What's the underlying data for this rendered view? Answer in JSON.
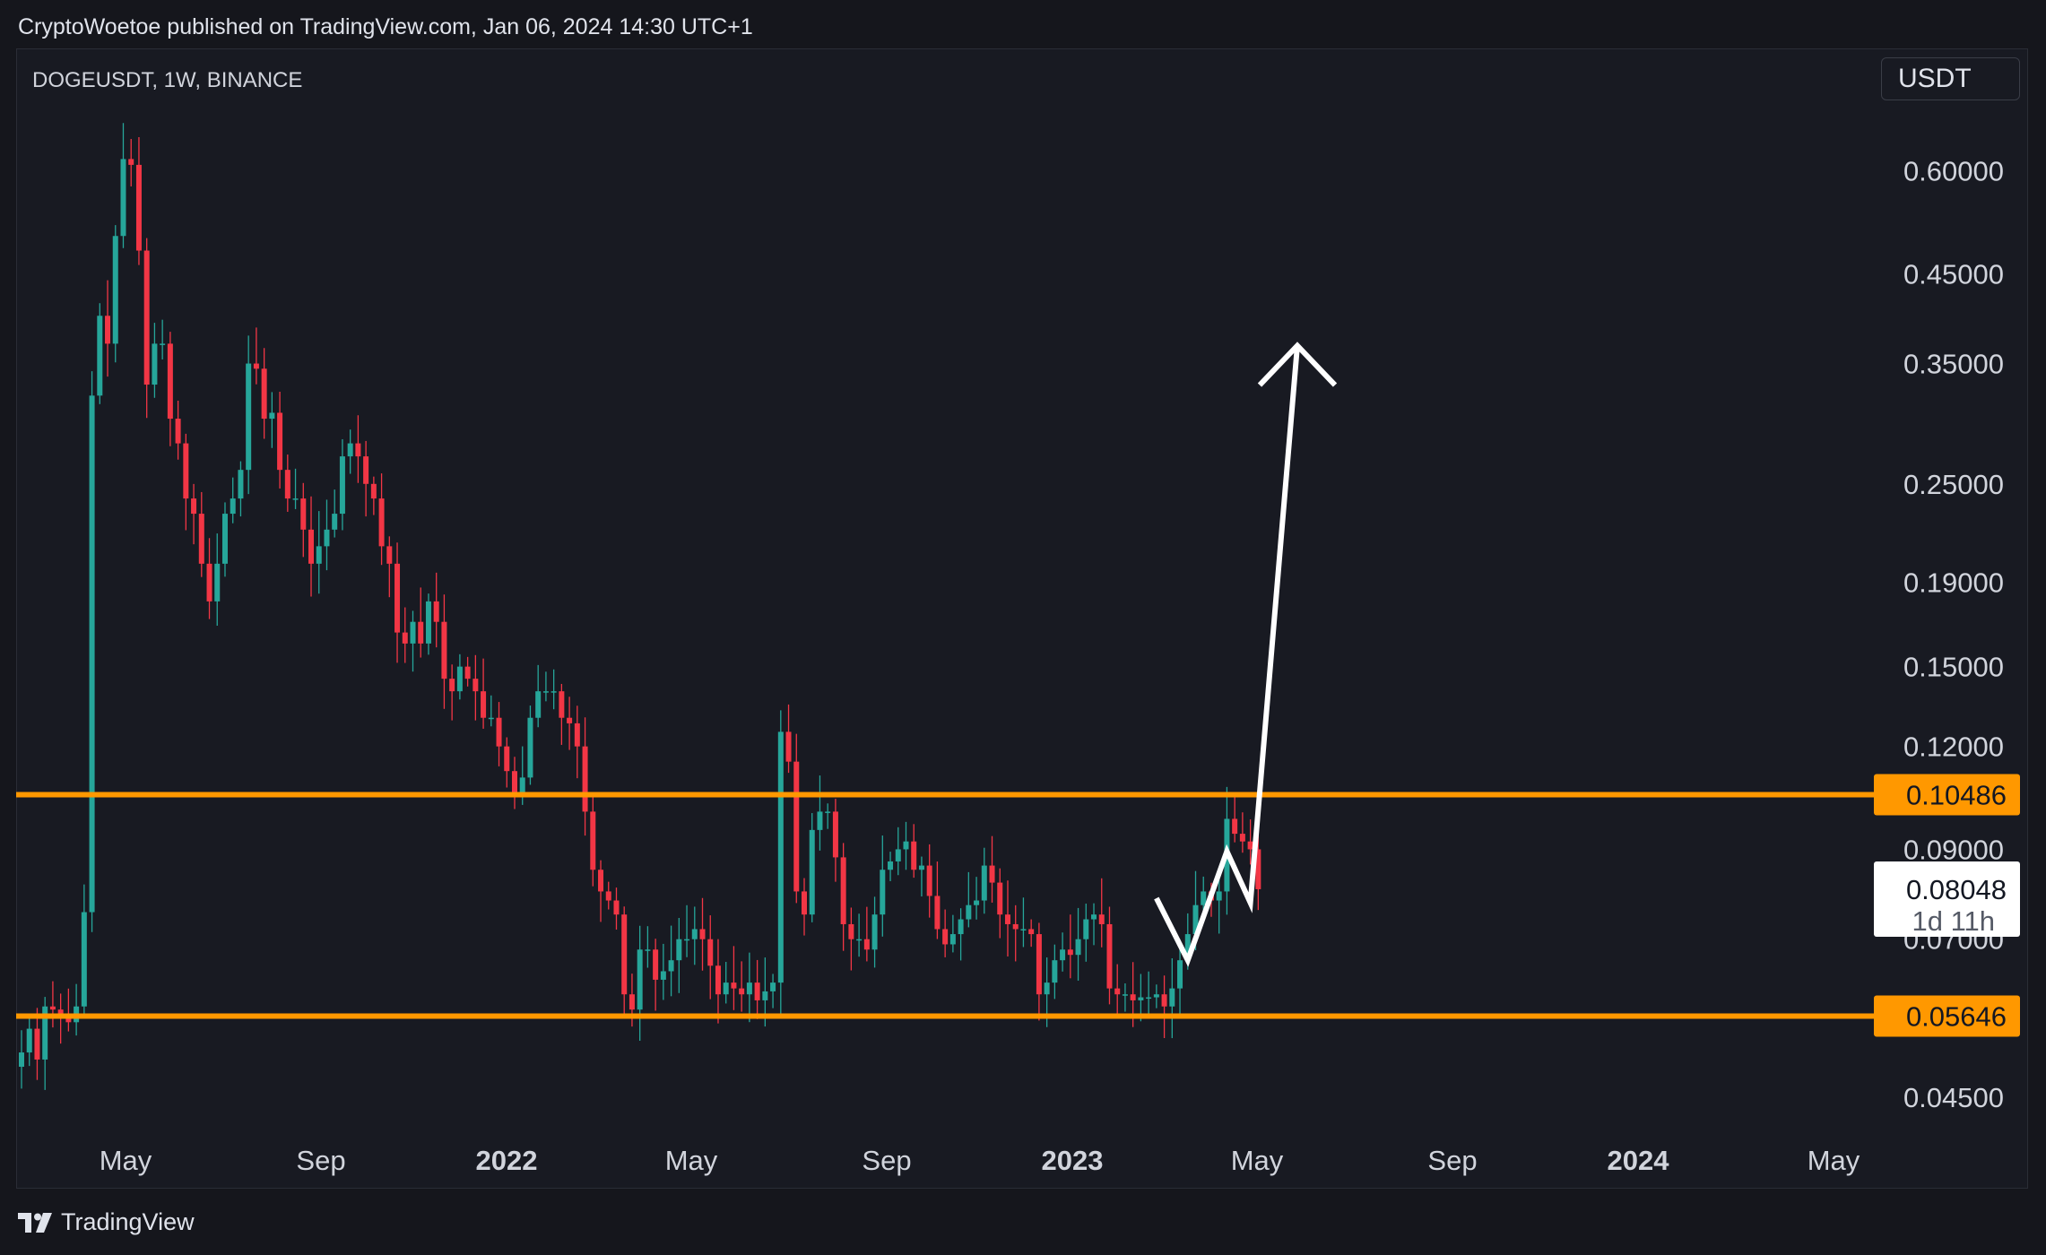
{
  "header": {
    "publish_text": "CryptoWoetoe published on TradingView.com, Jan 06, 2024 14:30 UTC+1"
  },
  "symbol": {
    "label": "DOGEUSDT, 1W, BINANCE"
  },
  "currency": {
    "label": "USDT"
  },
  "footer": {
    "brand": "TradingView",
    "logo_icon": "tradingview-logo-icon"
  },
  "colors": {
    "up": "#26a69a",
    "down": "#f23645",
    "level": "#ff9800",
    "background": "#181a22",
    "arrow": "#ffffff"
  },
  "chart_data": {
    "type": "candlestick",
    "symbol": "DOGEUSDT",
    "interval": "1W",
    "exchange": "BINANCE",
    "y_scale": "log",
    "ylim": [
      0.038,
      0.75
    ],
    "y_ticks": [
      "0.60000",
      "0.45000",
      "0.35000",
      "0.25000",
      "0.19000",
      "0.15000",
      "0.12000",
      "0.09000",
      "0.07000",
      "0.04500"
    ],
    "x_ticks": [
      {
        "label": "May",
        "bold": false
      },
      {
        "label": "Sep",
        "bold": false
      },
      {
        "label": "2022",
        "bold": true
      },
      {
        "label": "May",
        "bold": false
      },
      {
        "label": "Sep",
        "bold": false
      },
      {
        "label": "2023",
        "bold": true
      },
      {
        "label": "May",
        "bold": false
      },
      {
        "label": "Sep",
        "bold": false
      },
      {
        "label": "2024",
        "bold": true
      },
      {
        "label": "May",
        "bold": false
      }
    ],
    "horizontal_levels": [
      {
        "value": 0.10486,
        "label": "0.10486"
      },
      {
        "value": 0.05646,
        "label": "0.05646"
      }
    ],
    "last_price": {
      "value": 0.08048,
      "label": "0.08048",
      "countdown": "1d 11h"
    },
    "projection_path": [
      {
        "week": 145,
        "price": 0.0785
      },
      {
        "week": 149,
        "price": 0.066
      },
      {
        "week": 154,
        "price": 0.0895
      },
      {
        "week": 157,
        "price": 0.0775
      },
      {
        "week": 163,
        "price": 0.368
      }
    ],
    "closes": [
      0.051,
      0.0545,
      0.05,
      0.058,
      0.0575,
      0.0565,
      0.0555,
      0.058,
      0.0755,
      0.32,
      0.4,
      0.37,
      0.5,
      0.62,
      0.61,
      0.48,
      0.33,
      0.37,
      0.37,
      0.3,
      0.28,
      0.24,
      0.23,
      0.2,
      0.18,
      0.2,
      0.23,
      0.24,
      0.26,
      0.35,
      0.345,
      0.3,
      0.305,
      0.26,
      0.24,
      0.24,
      0.22,
      0.2,
      0.21,
      0.22,
      0.23,
      0.27,
      0.28,
      0.27,
      0.25,
      0.24,
      0.21,
      0.2,
      0.165,
      0.16,
      0.17,
      0.16,
      0.18,
      0.17,
      0.145,
      0.14,
      0.15,
      0.145,
      0.14,
      0.13,
      0.13,
      0.12,
      0.112,
      0.105,
      0.11,
      0.13,
      0.14,
      0.14,
      0.14,
      0.13,
      0.128,
      0.12,
      0.1,
      0.085,
      0.08,
      0.078,
      0.075,
      0.06,
      0.0575,
      0.068,
      0.068,
      0.0625,
      0.064,
      0.066,
      0.07,
      0.07,
      0.072,
      0.07,
      0.065,
      0.06,
      0.062,
      0.061,
      0.06,
      0.062,
      0.059,
      0.0605,
      0.062,
      0.125,
      0.115,
      0.08,
      0.075,
      0.095,
      0.1,
      0.1,
      0.088,
      0.073,
      0.07,
      0.07,
      0.068,
      0.075,
      0.085,
      0.087,
      0.09,
      0.092,
      0.085,
      0.086,
      0.079,
      0.072,
      0.069,
      0.071,
      0.074,
      0.077,
      0.078,
      0.086,
      0.082,
      0.075,
      0.073,
      0.072,
      0.072,
      0.071,
      0.06,
      0.062,
      0.066,
      0.068,
      0.067,
      0.07,
      0.074,
      0.075,
      0.073,
      0.061,
      0.06,
      0.06,
      0.059,
      0.0595,
      0.0595,
      0.06,
      0.058,
      0.061,
      0.066,
      0.071,
      0.077,
      0.08,
      0.078,
      0.08,
      0.098,
      0.094,
      0.092,
      0.09,
      0.0805
    ]
  }
}
